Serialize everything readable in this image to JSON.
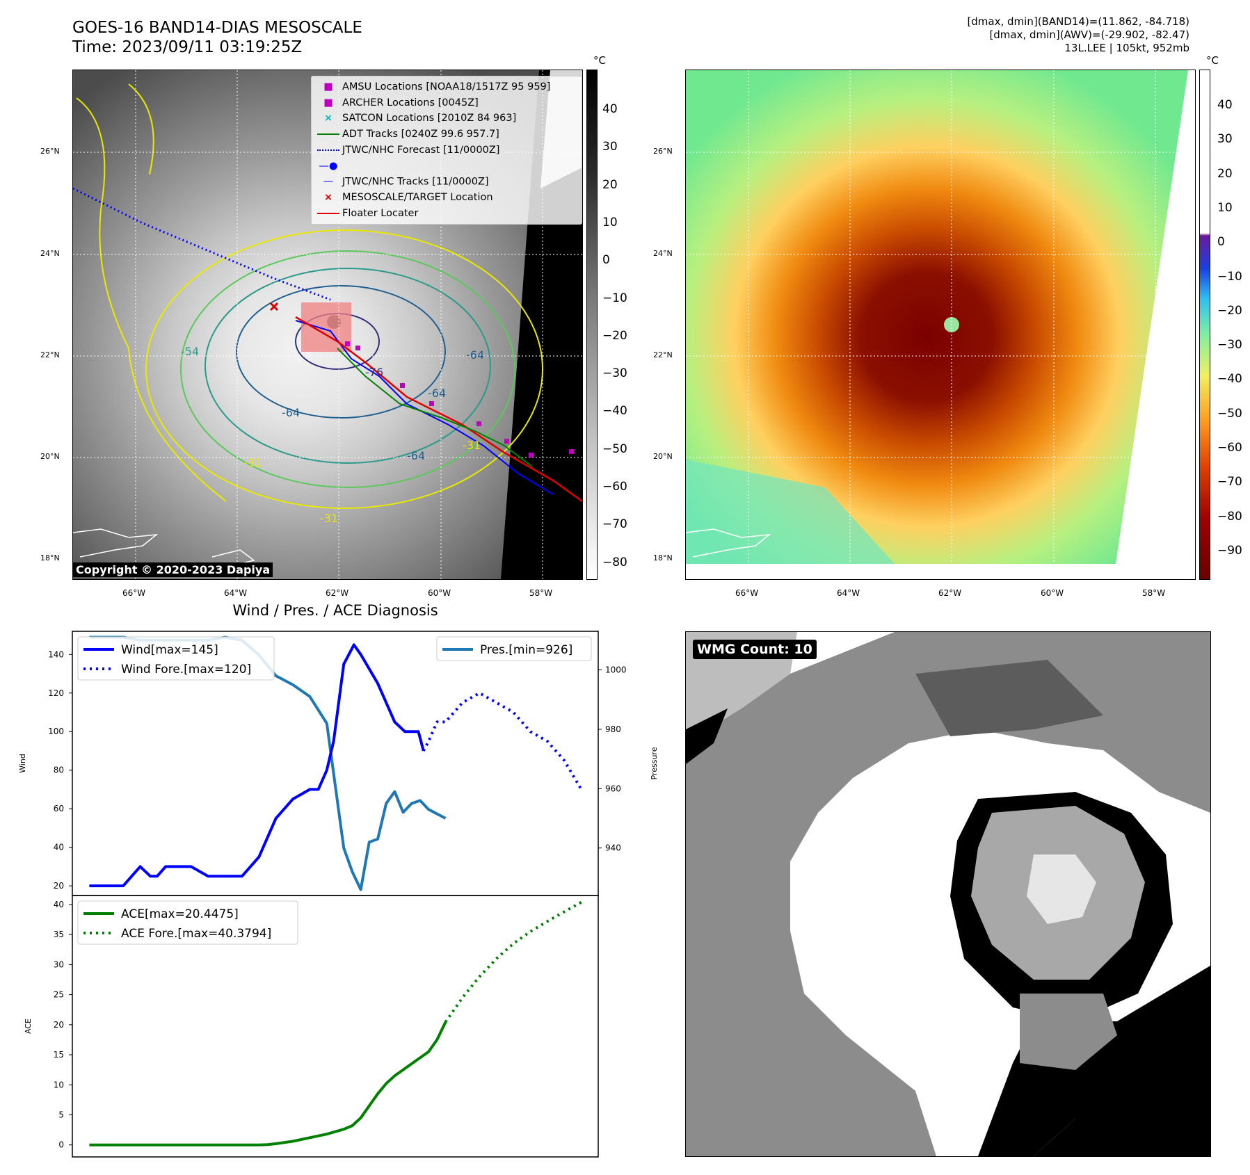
{
  "header": {
    "title_line1": "GOES-16 BAND14-DIAS MESOSCALE",
    "title_line2": "Time: 2023/09/11 03:19:25Z",
    "right_line1": "[dmax, dmin](BAND14)=(11.862, -84.718)",
    "right_line2": "[dmax, dmin](AWV)=(-29.902, -82.47)",
    "right_line3": "13L.LEE | 105kt, 952mb"
  },
  "map": {
    "lon_labels": [
      "66°W",
      "64°W",
      "62°W",
      "60°W",
      "58°W"
    ],
    "lat_labels": [
      "26°N",
      "24°N",
      "22°N",
      "20°N",
      "18°N"
    ],
    "copyright": "Copyright © 2020-2023 Dapiya",
    "contour_labels": [
      "-64",
      "-64",
      "-64",
      "-64",
      "-54",
      "-31",
      "-31",
      "-31",
      "-76"
    ],
    "legend": [
      {
        "label": "AMSU Locations [NOAA18/1517Z 95 959]",
        "marker": "square",
        "color": "#c000c0"
      },
      {
        "label": "ARCHER Locations [0045Z]",
        "marker": "square",
        "color": "#c000c0"
      },
      {
        "label": "SATCON Locations [2010Z 84 963]",
        "marker": "x",
        "color": "#00b8b8"
      },
      {
        "label": "ADT Tracks [0240Z 99.6 957.7]",
        "marker": "line",
        "color": "#008000"
      },
      {
        "label": "JTWC/NHC Forecast [11/0000Z]",
        "marker": "dotted",
        "color": "#0000ff"
      },
      {
        "label": "JTWC/NHC Tracks [11/0000Z]",
        "marker": "line-dot",
        "color": "#0000ff"
      },
      {
        "label": "MESOSCALE/TARGET Location",
        "marker": "x",
        "color": "#e00000"
      },
      {
        "label": "Floater Locater",
        "marker": "line",
        "color": "#e00000"
      }
    ]
  },
  "colorbar_gray": {
    "unit": "°C",
    "ticks": [
      "40",
      "30",
      "20",
      "10",
      "0",
      "−10",
      "−20",
      "−30",
      "−40",
      "−50",
      "−60",
      "−70",
      "−80"
    ]
  },
  "colorbar_color": {
    "unit": "°C",
    "ticks": [
      "40",
      "30",
      "20",
      "10",
      "0",
      "−10",
      "−20",
      "−30",
      "−40",
      "−50",
      "−60",
      "−70",
      "−80",
      "−90"
    ]
  },
  "wmg": {
    "label": "WMG Count: 10"
  },
  "chart_data": [
    {
      "type": "line",
      "title": "Wind / Pres. / ACE Diagnosis",
      "ylabel": "Wind",
      "ylabel_right": "Pressure",
      "ylim": [
        15,
        152
      ],
      "ylim_right": [
        924,
        1013
      ],
      "yticks": [
        20,
        40,
        60,
        80,
        100,
        120,
        140
      ],
      "yticks_right": [
        940,
        960,
        980,
        1000
      ],
      "series": [
        {
          "name": "Wind[max=145]",
          "color": "#0000ff",
          "style": "solid",
          "axis": "left",
          "x": [
            0,
            1,
            2,
            3,
            3.6,
            4,
            4.5,
            5,
            6,
            7,
            8,
            9,
            10,
            11,
            12,
            13,
            13.5,
            14,
            14.4,
            15,
            15.6,
            16,
            17,
            18,
            18.6,
            19,
            19.4,
            19.7
          ],
          "values": [
            20,
            20,
            20,
            30,
            25,
            25,
            30,
            30,
            30,
            25,
            25,
            25,
            35,
            55,
            65,
            70,
            70,
            80,
            95,
            135,
            145,
            140,
            125,
            105,
            100,
            100,
            100,
            90
          ]
        },
        {
          "name": "Wind Fore.[max=120]",
          "color": "#0000ff",
          "style": "dotted",
          "axis": "left",
          "x": [
            19.7,
            20,
            20.5,
            21,
            22,
            23,
            24,
            25,
            26,
            27,
            28,
            29
          ],
          "values": [
            90,
            95,
            105,
            105,
            115,
            120,
            115,
            110,
            100,
            95,
            85,
            70
          ]
        },
        {
          "name": "Pres.[min=926]",
          "color": "#1f77b4",
          "style": "solid",
          "axis": "right",
          "x": [
            0,
            1,
            2,
            3,
            4,
            5,
            6,
            7,
            8,
            9,
            10,
            11,
            12,
            13,
            14,
            15,
            15.5,
            16,
            16.5,
            17,
            17.5,
            18,
            18.5,
            19,
            19.5,
            20,
            21
          ],
          "values": [
            1011,
            1011,
            1011,
            1010,
            1010,
            1010,
            1010,
            1010,
            1011,
            1010,
            1005,
            998,
            995,
            991,
            982,
            940,
            932,
            926,
            942,
            943,
            955,
            959,
            952,
            955,
            956,
            953,
            950
          ]
        }
      ]
    },
    {
      "type": "line",
      "ylabel": "ACE",
      "ylim": [
        -2,
        41.5
      ],
      "yticks": [
        0,
        5,
        10,
        15,
        20,
        25,
        30,
        35,
        40
      ],
      "series": [
        {
          "name": "ACE[max=20.4475]",
          "color": "#008000",
          "style": "solid",
          "x": [
            0,
            2,
            4,
            6,
            8,
            10,
            10.5,
            11,
            12,
            13,
            14,
            15,
            15.5,
            16,
            16.5,
            17,
            17.5,
            18,
            18.5,
            19,
            19.5,
            20,
            20.5,
            21
          ],
          "values": [
            0,
            0,
            0,
            0,
            0,
            0,
            0.05,
            0.2,
            0.6,
            1.2,
            1.8,
            2.6,
            3.2,
            4.5,
            6.5,
            8.5,
            10.2,
            11.5,
            12.5,
            13.5,
            14.5,
            15.5,
            17.5,
            20.4475
          ]
        },
        {
          "name": "ACE Fore.[max=40.3794]",
          "color": "#008000",
          "style": "dotted",
          "x": [
            21,
            22,
            23,
            24,
            25,
            26,
            27,
            28,
            29
          ],
          "values": [
            20.4475,
            24.5,
            28,
            31,
            33.5,
            35.5,
            37.2,
            38.8,
            40.3794
          ]
        }
      ]
    }
  ]
}
